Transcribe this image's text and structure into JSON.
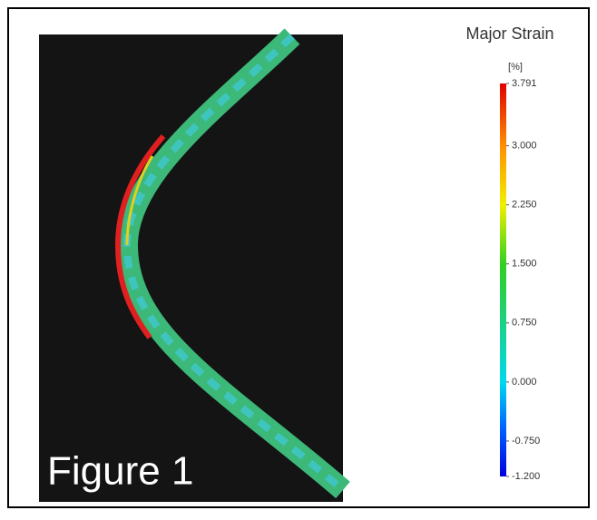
{
  "figure_label": "Figure 1",
  "colorbar": {
    "title": "Major Strain",
    "unit": "[%]",
    "range": [
      -1.2,
      3.791
    ],
    "ticks": [
      3.791,
      {
        "value": 3.0,
        "label": "3.000"
      },
      {
        "value": 2.25,
        "label": "2.250"
      },
      {
        "value": 1.5,
        "label": "1.500"
      },
      {
        "value": 0.75,
        "label": "0.750"
      },
      {
        "value": 0.0,
        "label": "0.000"
      },
      {
        "value": -0.75,
        "label": "-0.750"
      },
      {
        "value": -1.2,
        "label": "-1.200"
      }
    ]
  }
}
